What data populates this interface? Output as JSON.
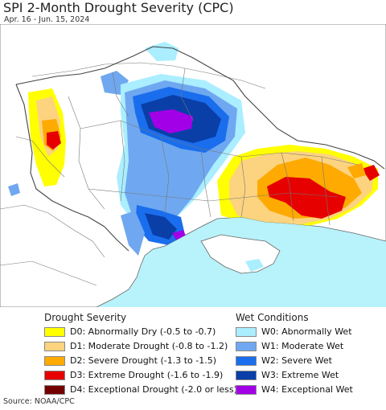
{
  "title": "SPI 2-Month Drought Severity (CPC)",
  "subtitle": "Apr. 16 - Jun. 15, 2024",
  "legend": {
    "drought_title": "Drought Severity",
    "wet_title": "Wet Conditions",
    "drought": [
      {
        "label": "D0: Abnormally Dry (-0.5 to -0.7)",
        "color": "#ffff00"
      },
      {
        "label": "D1: Moderate Drought (-0.8 to -1.2)",
        "color": "#fcd37f"
      },
      {
        "label": "D2: Severe Drought (-1.3 to -1.5)",
        "color": "#ffaa00"
      },
      {
        "label": "D3: Extreme Drought (-1.6 to -1.9)",
        "color": "#e60000"
      },
      {
        "label": "D4: Exceptional Drought (-2.0 or less)",
        "color": "#730000"
      }
    ],
    "wet": [
      {
        "label": "W0: Abnormally Wet",
        "color": "#aaeeff"
      },
      {
        "label": "W1: Moderate Wet",
        "color": "#6fa8f0"
      },
      {
        "label": "W2: Severe Wet",
        "color": "#1a6eed"
      },
      {
        "label": "W3: Extreme Wet",
        "color": "#0a3fa8"
      },
      {
        "label": "W4: Exceptional Wet",
        "color": "#a200e6"
      }
    ]
  },
  "source": "Source: NOAA/CPC"
}
